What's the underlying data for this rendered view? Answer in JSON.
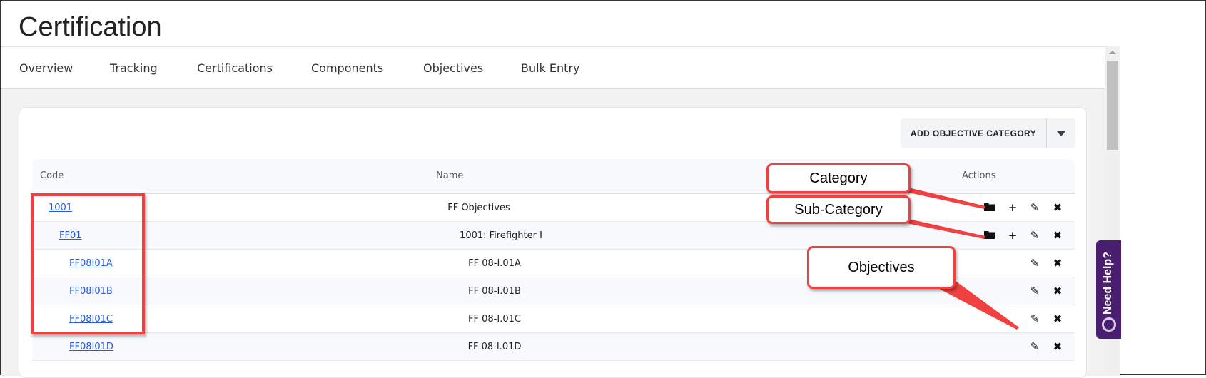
{
  "page_title": "Certification",
  "tabs": [
    {
      "label": "Overview"
    },
    {
      "label": "Tracking"
    },
    {
      "label": "Certifications"
    },
    {
      "label": "Components"
    },
    {
      "label": "Objectives"
    },
    {
      "label": "Bulk Entry"
    }
  ],
  "add_button": "ADD OBJECTIVE CATEGORY",
  "table": {
    "headers": {
      "code": "Code",
      "name": "Name",
      "actions": "Actions"
    },
    "rows": [
      {
        "code": "1001",
        "name": "FF Objectives",
        "type": "category"
      },
      {
        "code": "FF01",
        "name": "1001: Firefighter I",
        "type": "sub-category"
      },
      {
        "code": "FF08I01A",
        "name": "FF 08-I.01A",
        "type": "objective"
      },
      {
        "code": "FF08I01B",
        "name": "FF 08-I.01B",
        "type": "objective"
      },
      {
        "code": "FF08I01C",
        "name": "FF 08-I.01C",
        "type": "objective"
      },
      {
        "code": "FF08I01D",
        "name": "FF 08-I.01D",
        "type": "objective"
      }
    ]
  },
  "annotations": {
    "category": "Category",
    "sub_category": "Sub-Category",
    "objectives": "Objectives",
    "color": "#f04040"
  },
  "help": "Need Help?"
}
